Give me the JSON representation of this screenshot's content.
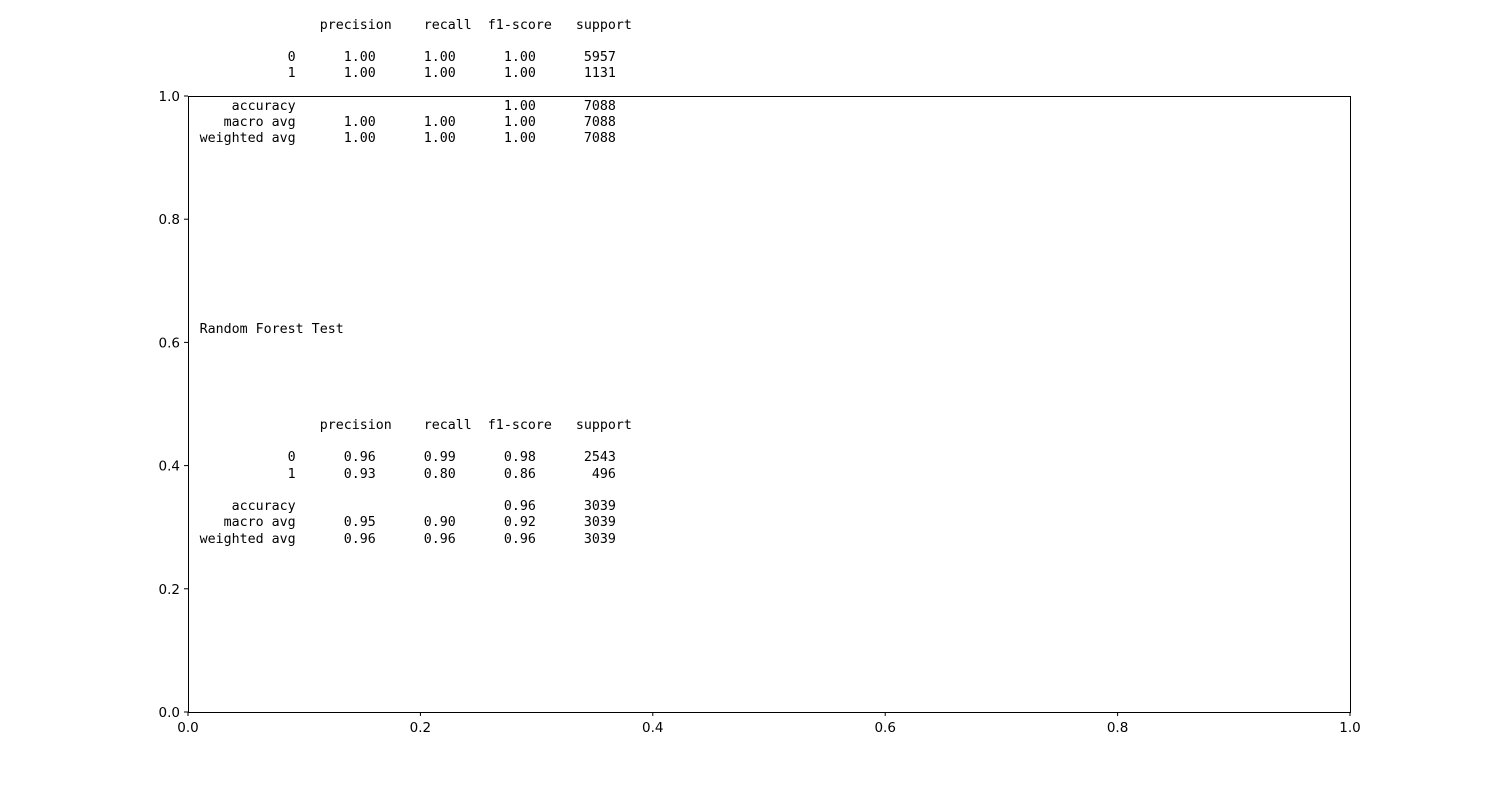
{
  "chart_data": {
    "type": "table",
    "title": "",
    "xlabel": "",
    "ylabel": "",
    "xlim": [
      0.0,
      1.0
    ],
    "ylim": [
      0.0,
      1.0
    ],
    "xticks": [
      "0.0",
      "0.2",
      "0.4",
      "0.6",
      "0.8",
      "1.0"
    ],
    "yticks": [
      "0.0",
      "0.2",
      "0.4",
      "0.6",
      "0.8",
      "1.0"
    ],
    "grid": false,
    "texts": [
      {
        "id": "train_report",
        "x": 0.01,
        "y": 0.92,
        "columns": [
          "precision",
          "recall",
          "f1-score",
          "support"
        ],
        "rows": [
          {
            "label": "0",
            "precision": "1.00",
            "recall": "1.00",
            "f1": "1.00",
            "support": "5957"
          },
          {
            "label": "1",
            "precision": "1.00",
            "recall": "1.00",
            "f1": "1.00",
            "support": "1131"
          },
          {
            "label": "accuracy",
            "precision": "",
            "recall": "",
            "f1": "1.00",
            "support": "7088"
          },
          {
            "label": "macro avg",
            "precision": "1.00",
            "recall": "1.00",
            "f1": "1.00",
            "support": "7088"
          },
          {
            "label": "weighted avg",
            "precision": "1.00",
            "recall": "1.00",
            "f1": "1.00",
            "support": "7088"
          }
        ]
      },
      {
        "id": "test_title",
        "x": 0.01,
        "y": 0.61,
        "text": "Random Forest Test"
      },
      {
        "id": "test_report",
        "x": 0.01,
        "y": 0.27,
        "columns": [
          "precision",
          "recall",
          "f1-score",
          "support"
        ],
        "rows": [
          {
            "label": "0",
            "precision": "0.96",
            "recall": "0.99",
            "f1": "0.98",
            "support": "2543"
          },
          {
            "label": "1",
            "precision": "0.93",
            "recall": "0.80",
            "f1": "0.86",
            "support": "496"
          },
          {
            "label": "accuracy",
            "precision": "",
            "recall": "",
            "f1": "0.96",
            "support": "3039"
          },
          {
            "label": "macro avg",
            "precision": "0.95",
            "recall": "0.90",
            "f1": "0.92",
            "support": "3039"
          },
          {
            "label": "weighted avg",
            "precision": "0.96",
            "recall": "0.96",
            "f1": "0.96",
            "support": "3039"
          }
        ]
      }
    ]
  }
}
